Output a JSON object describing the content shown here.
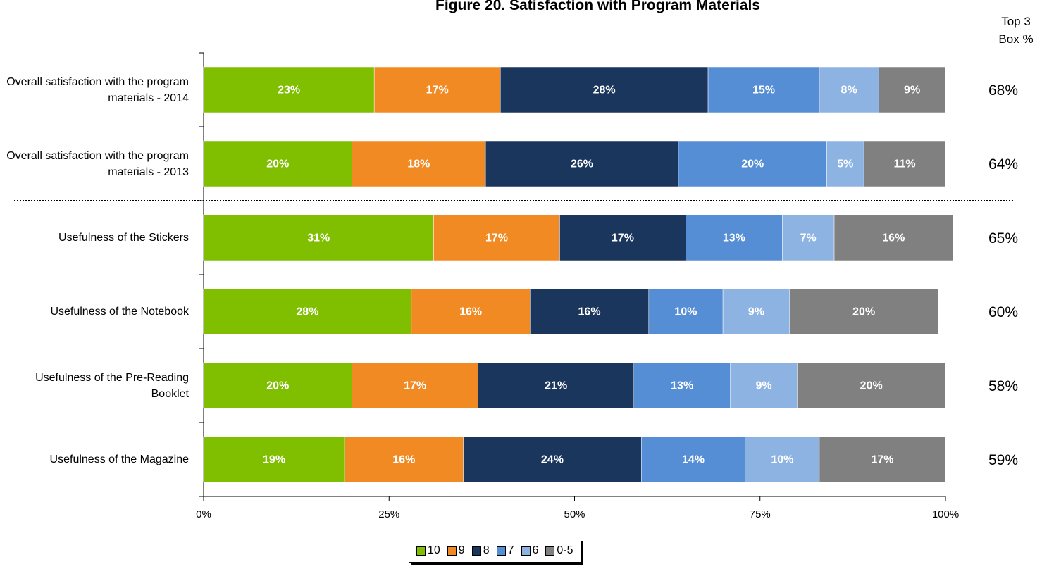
{
  "chart_data": {
    "type": "stacked_bar_horizontal",
    "title": "Figure 20.  Satisfaction with Program Materials",
    "categories": [
      "Overall satisfaction with the program materials - 2014",
      "Overall satisfaction with the program materials - 2013",
      "Usefulness of the Stickers",
      "Usefulness of the Notebook",
      "Usefulness of the Pre-Reading Booklet",
      "Usefulness of the Magazine"
    ],
    "series": [
      {
        "name": "10",
        "color": "#7fbf00",
        "values": [
          23,
          20,
          31,
          28,
          20,
          19
        ],
        "value_labels": [
          "23%",
          "20%",
          "31%",
          "28%",
          "20%",
          "19%"
        ]
      },
      {
        "name": "9",
        "color": "#f28a24",
        "values": [
          17,
          18,
          17,
          16,
          17,
          16
        ],
        "value_labels": [
          "17%",
          "18%",
          "17%",
          "16%",
          "17%",
          "16%"
        ]
      },
      {
        "name": "8",
        "color": "#1b365d",
        "values": [
          28,
          26,
          17,
          16,
          21,
          24
        ],
        "value_labels": [
          "28%",
          "26%",
          "17%",
          "16%",
          "21%",
          "24%"
        ]
      },
      {
        "name": "7",
        "color": "#558ed5",
        "values": [
          15,
          20,
          13,
          10,
          13,
          14
        ],
        "value_labels": [
          "15%",
          "20%",
          "13%",
          "10%",
          "13%",
          "14%"
        ]
      },
      {
        "name": "6",
        "color": "#8db3e2",
        "values": [
          8,
          5,
          7,
          9,
          9,
          10
        ],
        "value_labels": [
          "8%",
          "5%",
          "7%",
          "9%",
          "9%",
          "10%"
        ]
      },
      {
        "name": "0-5",
        "color": "#808080",
        "values": [
          9,
          11,
          16,
          20,
          20,
          17
        ],
        "value_labels": [
          "9%",
          "11%",
          "16%",
          "20%",
          "20%",
          "17%"
        ]
      }
    ],
    "xlim": [
      0,
      100
    ],
    "xticks": [
      {
        "value": 0,
        "label": "0%"
      },
      {
        "value": 25,
        "label": "25%"
      },
      {
        "value": 50,
        "label": "50%"
      },
      {
        "value": 75,
        "label": "75%"
      },
      {
        "value": 100,
        "label": "100%"
      }
    ],
    "top3_title": "Top 3 Box %",
    "top3": {
      "values": [
        68,
        64,
        65,
        60,
        58,
        59
      ],
      "value_labels": [
        "68%",
        "64%",
        "65%",
        "60%",
        "58%",
        "59%"
      ]
    },
    "legend": "bottom"
  }
}
